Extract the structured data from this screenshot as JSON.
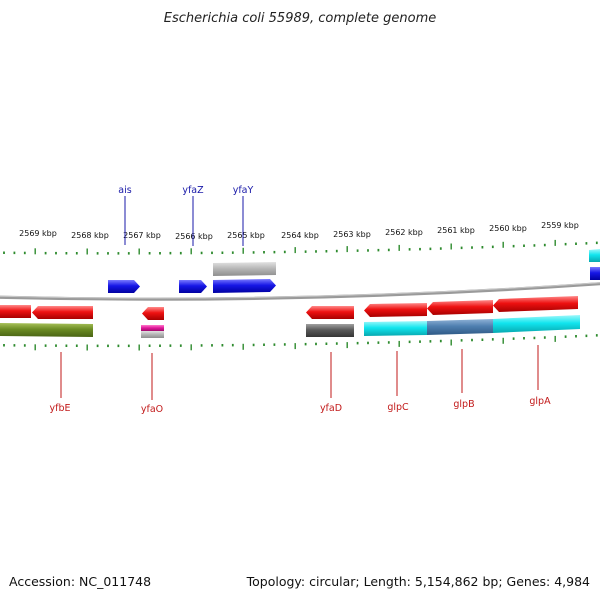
{
  "title": "Escherichia coli 55989, complete genome",
  "footer": {
    "accession": "Accession: NC_011748",
    "topology": "Topology: circular; Length: 5,154,862 bp; Genes: 4,984"
  },
  "scale_labels": [
    "2569 kbp",
    "2568 kbp",
    "2567 kbp",
    "2566 kbp",
    "2565 kbp",
    "2564 kbp",
    "2563 kbp",
    "2562 kbp",
    "2561 kbp",
    "2560 kbp",
    "2559 kbp"
  ],
  "genes_forward": [
    "ais",
    "yfaZ",
    "yfaY"
  ],
  "genes_reverse": [
    "yfbE",
    "yfaO",
    "yfaD",
    "glpC",
    "glpB",
    "glpA"
  ],
  "colors": {
    "backbone": "#8a8a8a",
    "tick": "#2e8b2e",
    "forward_cds": "#1616e6",
    "reverse_cds": "#ee1111",
    "forward_label": "#1a1aa8",
    "reverse_label": "#c21a1a",
    "olive": "#6b8c23",
    "grey": "#b8b8b8",
    "dark_grey": "#5a5a5a",
    "cyan": "#11e5ee",
    "steel_blue": "#4f7fb0",
    "magenta": "#e0159a"
  }
}
